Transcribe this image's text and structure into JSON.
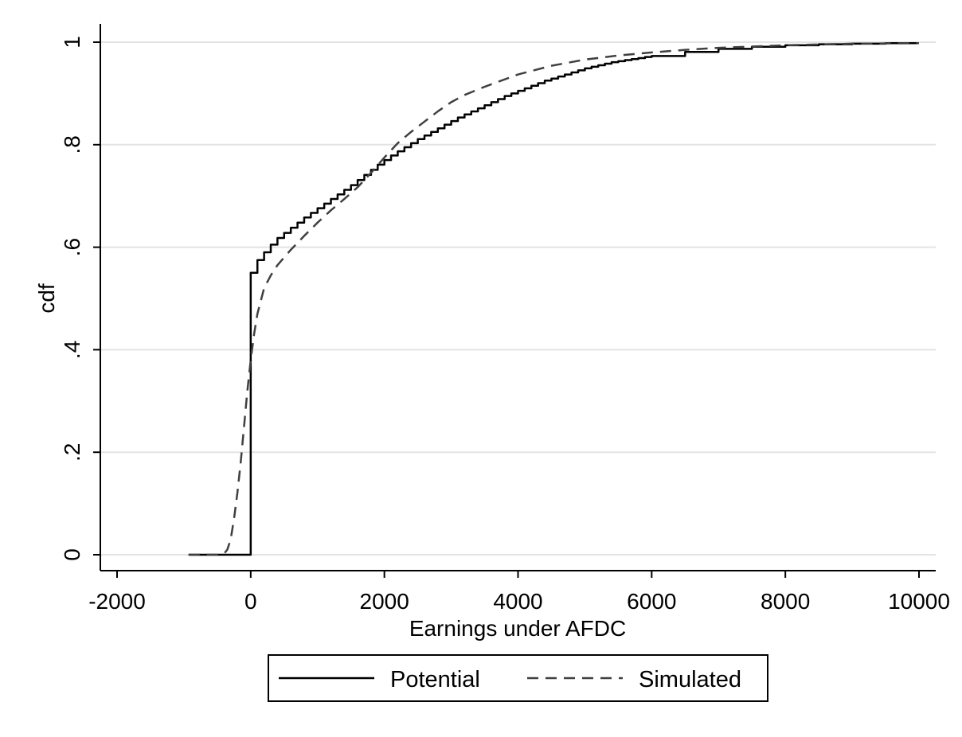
{
  "chart_data": {
    "type": "line",
    "xlabel": "Earnings under AFDC",
    "ylabel": "cdf",
    "xlim": [
      -2000,
      10000
    ],
    "ylim": [
      0,
      1
    ],
    "x_ticks": [
      {
        "value": -2000,
        "label": "-2000"
      },
      {
        "value": 0,
        "label": "0"
      },
      {
        "value": 2000,
        "label": "2000"
      },
      {
        "value": 4000,
        "label": "4000"
      },
      {
        "value": 6000,
        "label": "6000"
      },
      {
        "value": 8000,
        "label": "8000"
      },
      {
        "value": 10000,
        "label": "10000"
      }
    ],
    "y_ticks": [
      {
        "value": 0,
        "label": "0"
      },
      {
        "value": 0.2,
        "label": ".2"
      },
      {
        "value": 0.4,
        "label": ".4"
      },
      {
        "value": 0.6,
        "label": ".6"
      },
      {
        "value": 0.8,
        "label": ".8"
      },
      {
        "value": 1,
        "label": "1"
      }
    ],
    "grid": "horizontal",
    "legend_position": "bottom",
    "series": [
      {
        "name": "Potential",
        "style": "solid-step",
        "color": "#000000",
        "x": [
          -930,
          0,
          0,
          100,
          200,
          300,
          400,
          500,
          600,
          700,
          800,
          900,
          1000,
          1100,
          1200,
          1300,
          1400,
          1500,
          1600,
          1700,
          1800,
          1900,
          2000,
          2100,
          2200,
          2300,
          2400,
          2500,
          2600,
          2700,
          2800,
          2900,
          3000,
          3100,
          3200,
          3300,
          3400,
          3500,
          3600,
          3700,
          3800,
          3900,
          4000,
          4100,
          4200,
          4300,
          4400,
          4500,
          4600,
          4700,
          4800,
          4900,
          5000,
          5100,
          5200,
          5300,
          5400,
          5500,
          5600,
          5700,
          5800,
          5900,
          6000,
          6500,
          7000,
          7500,
          8000,
          8500,
          9000,
          9500,
          10000
        ],
        "y": [
          0,
          0,
          0.55,
          0.575,
          0.59,
          0.605,
          0.618,
          0.628,
          0.638,
          0.648,
          0.658,
          0.667,
          0.676,
          0.685,
          0.694,
          0.703,
          0.712,
          0.721,
          0.731,
          0.741,
          0.751,
          0.761,
          0.77,
          0.779,
          0.787,
          0.795,
          0.803,
          0.811,
          0.818,
          0.825,
          0.832,
          0.839,
          0.846,
          0.853,
          0.859,
          0.865,
          0.871,
          0.877,
          0.883,
          0.889,
          0.895,
          0.9,
          0.905,
          0.91,
          0.915,
          0.92,
          0.925,
          0.929,
          0.933,
          0.937,
          0.941,
          0.945,
          0.949,
          0.952,
          0.955,
          0.958,
          0.961,
          0.963,
          0.965,
          0.967,
          0.969,
          0.971,
          0.973,
          0.981,
          0.987,
          0.991,
          0.994,
          0.996,
          0.997,
          0.998,
          0.998
        ]
      },
      {
        "name": "Simulated",
        "style": "dashed",
        "color": "#404040",
        "x": [
          -930,
          -500,
          -400,
          -350,
          -300,
          -250,
          -200,
          -150,
          -100,
          -50,
          0,
          50,
          100,
          200,
          300,
          400,
          500,
          600,
          800,
          1000,
          1200,
          1400,
          1600,
          1800,
          2000,
          2200,
          2400,
          2600,
          2800,
          3000,
          3200,
          3500,
          4000,
          4500,
          5000,
          5500,
          6000,
          6500,
          7000,
          8000,
          9000,
          10000
        ],
        "y": [
          0,
          0,
          0.002,
          0.01,
          0.03,
          0.07,
          0.12,
          0.18,
          0.25,
          0.32,
          0.38,
          0.43,
          0.47,
          0.52,
          0.545,
          0.565,
          0.58,
          0.595,
          0.622,
          0.648,
          0.672,
          0.694,
          0.717,
          0.745,
          0.775,
          0.803,
          0.825,
          0.845,
          0.865,
          0.883,
          0.897,
          0.913,
          0.937,
          0.954,
          0.966,
          0.974,
          0.98,
          0.985,
          0.989,
          0.994,
          0.997,
          0.998
        ]
      }
    ]
  }
}
